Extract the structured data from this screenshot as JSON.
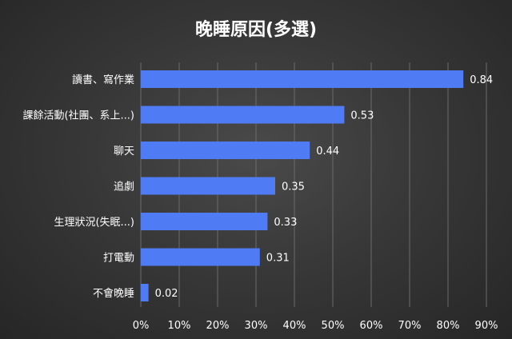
{
  "chart_data": {
    "type": "bar",
    "orientation": "horizontal",
    "title": "晚睡原因(多選)",
    "categories": [
      "讀書、寫作業",
      "課餘活動(社團、系上...)",
      "聊天",
      "追劇",
      "生理狀況(失眠...)",
      "打電動",
      "不會晚睡"
    ],
    "values": [
      0.84,
      0.53,
      0.44,
      0.35,
      0.33,
      0.31,
      0.02
    ],
    "value_labels": [
      "0.84",
      "0.53",
      "0.44",
      "0.35",
      "0.33",
      "0.31",
      "0.02"
    ],
    "x_ticks": [
      "0%",
      "10%",
      "20%",
      "30%",
      "40%",
      "50%",
      "60%",
      "70%",
      "80%",
      "90%"
    ],
    "xlim": [
      0,
      0.9
    ],
    "grid": "vertical",
    "legend": "none",
    "bar_color": "#4f7cf5"
  }
}
